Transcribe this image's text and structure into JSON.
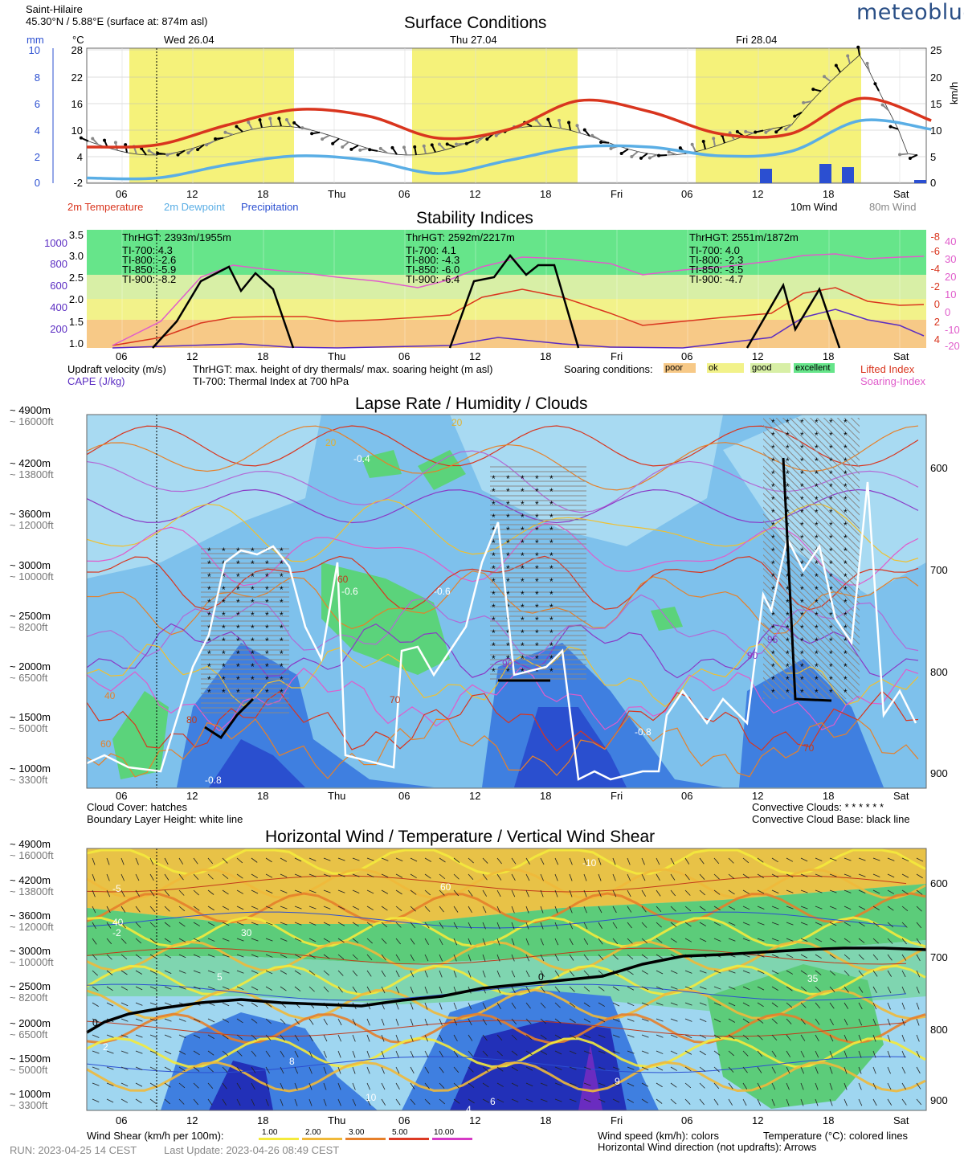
{
  "header": {
    "location": "Saint-Hilaire",
    "coords": "45.30°N / 5.88°E (surface at: 874m asl)",
    "brand": "meteoblue"
  },
  "time_axis": {
    "ticks": [
      "06",
      "12",
      "18",
      "Thu",
      "06",
      "12",
      "18",
      "Fri",
      "06",
      "12",
      "18",
      "Sat"
    ],
    "day_labels": [
      "Wed 26.04",
      "Thu 27.04",
      "Fri 28.04"
    ]
  },
  "panel1": {
    "title": "Surface Conditions",
    "unit_mm": "mm",
    "unit_c": "°C",
    "unit_kmh": "km/h",
    "legend": {
      "temp": "2m Temperature",
      "dew": "2m Dewpoint",
      "precip": "Precipitation",
      "wind10": "10m Wind",
      "wind80": "80m Wind"
    },
    "colors": {
      "temp": "#d9351e",
      "dew": "#5aaee5",
      "precip": "#2b4fd1",
      "day": "#f5f27a"
    },
    "chart_data": {
      "type": "line",
      "x_hours": [
        0,
        6,
        12,
        18,
        24,
        30,
        36,
        42,
        48,
        54,
        60,
        66,
        72
      ],
      "series": [
        {
          "name": "2m Temperature",
          "values": [
            6,
            6.5,
            11,
            14.5,
            13,
            8,
            10,
            16.5,
            14,
            9,
            9,
            17,
            12
          ]
        },
        {
          "name": "2m Dewpoint",
          "values": [
            -1,
            -1,
            2,
            4,
            3,
            0,
            3,
            6,
            6,
            4,
            5,
            12,
            10
          ]
        },
        {
          "name": "Precipitation",
          "values": [
            0,
            0,
            0,
            0,
            0,
            0,
            0,
            0,
            0,
            0,
            0.8,
            1.5,
            0.3
          ]
        }
      ],
      "y_ticks_c": [
        "28",
        "22",
        "16",
        "10",
        "4",
        "-2"
      ],
      "y_ticks_mm": [
        "10",
        "8",
        "6",
        "4",
        "2",
        "0"
      ],
      "y_ticks_kmh": [
        "25",
        "20",
        "15",
        "10",
        "5",
        "0"
      ]
    }
  },
  "panel2": {
    "title": "Stability Indices",
    "left_ticks_updraft": [
      "3.5",
      "3.0",
      "2.5",
      "2.0",
      "1.5",
      "1.0"
    ],
    "left_ticks_cape": [
      "1000",
      "800",
      "600",
      "400",
      "200"
    ],
    "right_ticks_li": [
      "-8",
      "-6",
      "-4",
      "-2",
      "0",
      "2",
      "4"
    ],
    "right_ticks_si": [
      "40",
      "30",
      "20",
      "10",
      "0",
      "-10",
      "-20"
    ],
    "days": [
      {
        "thr": "ThrHGT: 2393m/1955m",
        "ti700": "TI-700:  4.3",
        "ti800": "TI-800:  -2.6",
        "ti850": "TI-850:  -5.9",
        "ti900": "TI-900:  -8.2"
      },
      {
        "thr": "ThrHGT: 2592m/2217m",
        "ti700": "TI-700:  4.1",
        "ti800": "TI-800:  -4.3",
        "ti850": "TI-850:  -6.0",
        "ti900": "TI-900:  -6.4"
      },
      {
        "thr": "ThrHGT: 2551m/1872m",
        "ti700": "TI-700:  4.0",
        "ti800": "TI-800:  -2.3",
        "ti850": "TI-850:  -3.5",
        "ti900": "TI-900:  -4.7"
      }
    ],
    "legend": {
      "updraft": "Updraft velocity (m/s)",
      "cape": "CAPE (J/kg)",
      "thr": "ThrHGT: max. height of dry thermals/ max. soaring height (m asl)",
      "ti": "TI-700: Thermal Index at 700 hPa",
      "soaring": "Soaring conditions:",
      "poor": "poor",
      "ok": "ok",
      "good": "good",
      "excellent": "excellent",
      "li": "Lifted Index",
      "si": "Soaring-Index"
    },
    "colors": {
      "excellent": "#66e58a",
      "good": "#d8efa6",
      "ok": "#f2f28a",
      "poor": "#f7c987"
    }
  },
  "panel3": {
    "title": "Lapse Rate / Humidity / Clouds",
    "alt_m": [
      "~ 4900m",
      "~ 4200m",
      "~ 3600m",
      "~ 3000m",
      "~ 2500m",
      "~ 2000m",
      "~ 1500m",
      "~ 1000m"
    ],
    "alt_ft": [
      "~ 16000ft",
      "~ 13800ft",
      "~ 12000ft",
      "~ 10000ft",
      "~ 8200ft",
      "~ 6500ft",
      "~ 5000ft",
      "~ 3300ft"
    ],
    "hpa": [
      "600",
      "700",
      "800",
      "900"
    ],
    "contour_labels": [
      "-0.6",
      "-0.4",
      "-0.6",
      "-0.8",
      "-0.8",
      "20",
      "20",
      "60",
      "70",
      "70",
      "80",
      "90",
      "90",
      "95",
      "40",
      "60"
    ],
    "legend": {
      "cc": "Cloud Cover: hatches",
      "bl": "Boundary Layer Height: white line",
      "conv": "Convective Clouds: * * * * * *",
      "ccb": "Convective Cloud Base: black line"
    }
  },
  "panel4": {
    "title": "Horizontal Wind / Temperature / Vertical Wind Shear",
    "alt_m": [
      "~ 4900m",
      "~ 4200m",
      "~ 3600m",
      "~ 3000m",
      "~ 2500m",
      "~ 2000m",
      "~ 1500m",
      "~ 1000m"
    ],
    "alt_ft": [
      "~ 16000ft",
      "~ 13800ft",
      "~ 12000ft",
      "~ 10000ft",
      "~ 8200ft",
      "~ 6500ft",
      "~ 5000ft",
      "~ 3300ft"
    ],
    "hpa": [
      "600",
      "700",
      "800",
      "900"
    ],
    "contour_labels": [
      "-10",
      "-5",
      "-2",
      "0",
      "0",
      "2",
      "5",
      "10",
      "30",
      "35",
      "40",
      "60",
      "4",
      "6",
      "8",
      "9"
    ],
    "legend": {
      "shear": "Wind Shear (km/h per 100m):",
      "s1": "1.00",
      "s2": "2.00",
      "s3": "3.00",
      "s5": "5.00",
      "s10": "10.00",
      "speed": "Wind speed (km/h): colors",
      "temp": "Temperature (°C): colored lines",
      "dir": "Horizontal Wind direction (not updrafts): Arrows"
    },
    "colors": {
      "s1": "#f4ea3c",
      "s2": "#f0b93a",
      "s3": "#e6802a",
      "s5": "#dc3a24",
      "s10": "#d63ac6"
    }
  },
  "footer": {
    "run": "RUN: 2023-04-25 14 CEST",
    "update": "Last Update: 2023-04-26 08:49 CEST"
  }
}
